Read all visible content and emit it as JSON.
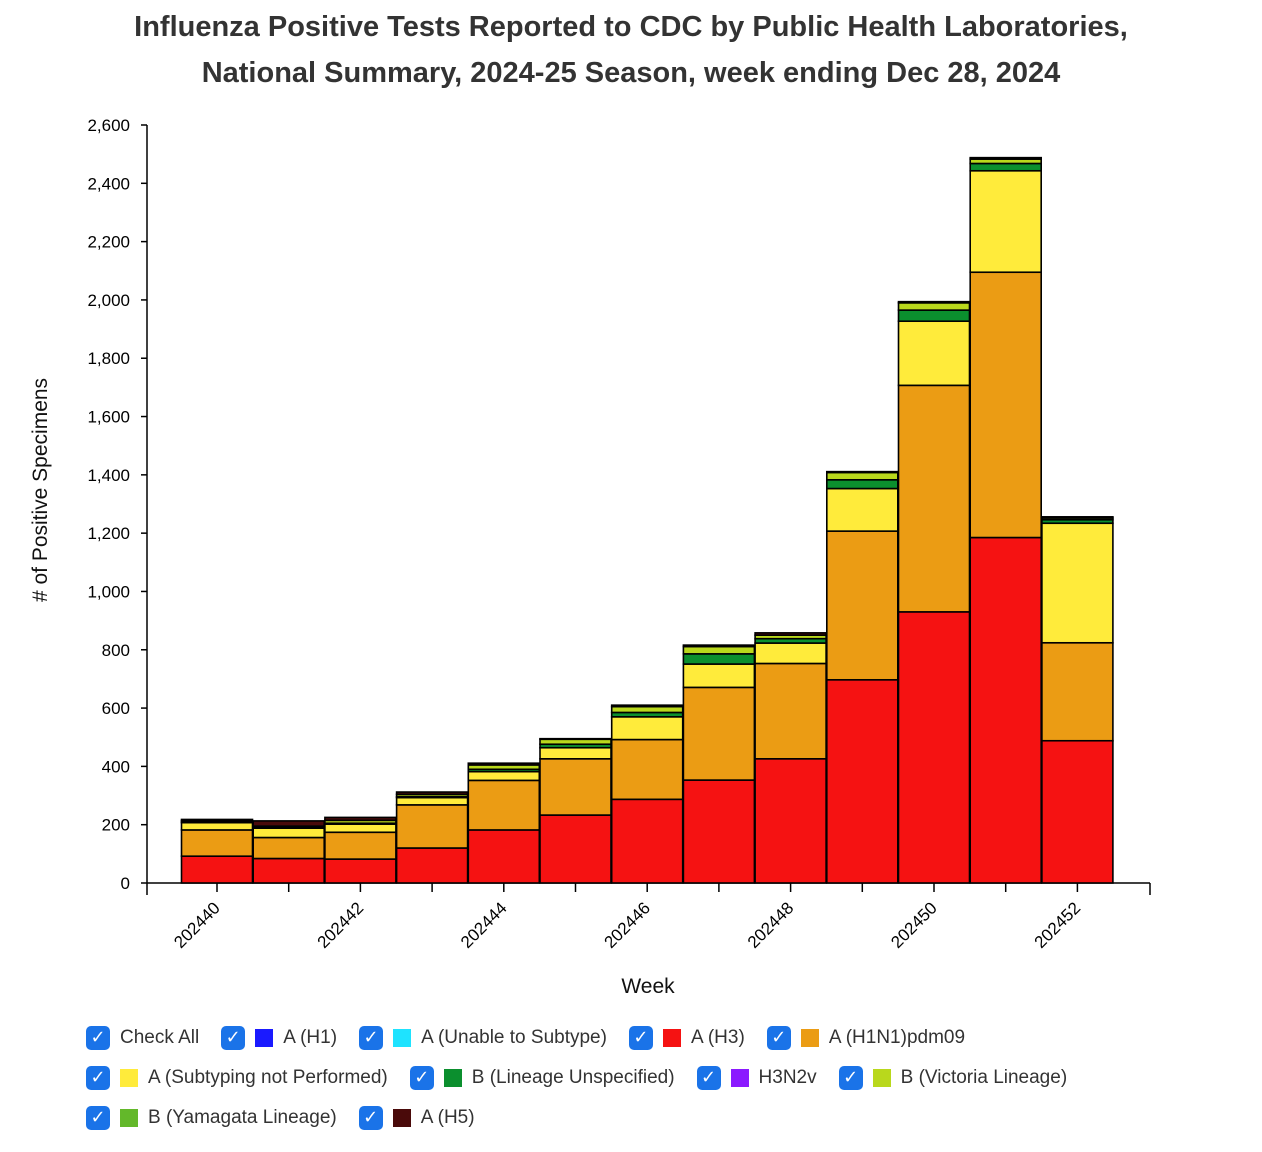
{
  "chart_data": {
    "type": "bar",
    "stacked": true,
    "title": [
      "Influenza Positive Tests Reported to CDC by Public Health Laboratories,",
      "National Summary, 2024-25 Season, week ending Dec 28, 2024"
    ],
    "xlabel": "Week",
    "ylabel": "# of Positive Specimens",
    "ylim": [
      0,
      2600
    ],
    "yticks": [
      0,
      200,
      400,
      600,
      800,
      1000,
      1200,
      1400,
      1600,
      1800,
      2000,
      2200,
      2400,
      2600
    ],
    "ytick_labels": [
      "0",
      "200",
      "400",
      "600",
      "800",
      "1,000",
      "1,200",
      "1,400",
      "1,600",
      "1,800",
      "2,000",
      "2,200",
      "2,400",
      "2,600"
    ],
    "categories": [
      "202440",
      "202441",
      "202442",
      "202443",
      "202444",
      "202445",
      "202446",
      "202447",
      "202448",
      "202449",
      "202450",
      "202451",
      "202452"
    ],
    "xtick_labels": [
      "202440",
      "202442",
      "202444",
      "202446",
      "202448",
      "202450",
      "202452"
    ],
    "series": [
      {
        "name": "A (H1)",
        "color": "#1a1aff",
        "values": [
          0,
          0,
          0,
          0,
          0,
          0,
          0,
          0,
          0,
          0,
          0,
          0,
          0
        ]
      },
      {
        "name": "A (Unable to Subtype)",
        "color": "#1ee3ff",
        "values": [
          0,
          0,
          0,
          0,
          0,
          0,
          0,
          0,
          0,
          0,
          0,
          0,
          0
        ]
      },
      {
        "name": "A (H3)",
        "color": "#f51212",
        "values": [
          92,
          84,
          82,
          120,
          182,
          233,
          287,
          353,
          426,
          697,
          930,
          1185,
          488
        ]
      },
      {
        "name": "A (H1N1)pdm09",
        "color": "#eb9c14",
        "values": [
          90,
          72,
          92,
          148,
          170,
          193,
          205,
          318,
          327,
          510,
          777,
          910,
          336
        ]
      },
      {
        "name": "A (Subtyping not Performed)",
        "color": "#ffeb3b",
        "values": [
          25,
          32,
          28,
          25,
          30,
          38,
          78,
          80,
          70,
          146,
          220,
          348,
          410
        ]
      },
      {
        "name": "B (Lineage Unspecified)",
        "color": "#0b8f2e",
        "values": [
          2,
          2,
          3,
          3,
          8,
          12,
          15,
          35,
          15,
          30,
          38,
          25,
          12
        ]
      },
      {
        "name": "H3N2v",
        "color": "#8b1aff",
        "values": [
          0,
          0,
          0,
          0,
          0,
          0,
          0,
          0,
          0,
          0,
          0,
          0,
          0
        ]
      },
      {
        "name": "B (Victoria Lineage)",
        "color": "#b9d81c",
        "values": [
          5,
          5,
          10,
          8,
          15,
          17,
          20,
          25,
          12,
          25,
          25,
          15,
          6
        ]
      },
      {
        "name": "B (Yamagata Lineage)",
        "color": "#63b82a",
        "values": [
          0,
          0,
          0,
          0,
          0,
          0,
          0,
          0,
          0,
          0,
          0,
          0,
          0
        ]
      },
      {
        "name": "A (H5)",
        "color": "#4a0a0a",
        "values": [
          4,
          18,
          10,
          8,
          6,
          2,
          5,
          5,
          8,
          3,
          4,
          5,
          4
        ]
      }
    ],
    "legend_placement": "bottom",
    "grid": false
  },
  "legend": {
    "check_all_label": "Check All",
    "rows": [
      [
        {
          "key": "check_all",
          "label": "Check All",
          "color": ""
        },
        {
          "key": "h1",
          "label": "A (H1)",
          "color": "#1a1aff"
        },
        {
          "key": "unable",
          "label": "A (Unable to Subtype)",
          "color": "#1ee3ff"
        },
        {
          "key": "h3",
          "label": "A (H3)",
          "color": "#f51212"
        },
        {
          "key": "pdm09",
          "label": "A (H1N1)pdm09",
          "color": "#eb9c14"
        }
      ],
      [
        {
          "key": "notperf",
          "label": "A (Subtyping not Performed)",
          "color": "#ffeb3b"
        },
        {
          "key": "blin",
          "label": "B (Lineage Unspecified)",
          "color": "#0b8f2e"
        },
        {
          "key": "h3n2v",
          "label": "H3N2v",
          "color": "#8b1aff"
        },
        {
          "key": "vic",
          "label": "B (Victoria Lineage)",
          "color": "#b9d81c"
        }
      ],
      [
        {
          "key": "yam",
          "label": "B (Yamagata Lineage)",
          "color": "#63b82a"
        },
        {
          "key": "h5",
          "label": "A (H5)",
          "color": "#4a0a0a"
        }
      ]
    ],
    "checkmark": "✓"
  }
}
